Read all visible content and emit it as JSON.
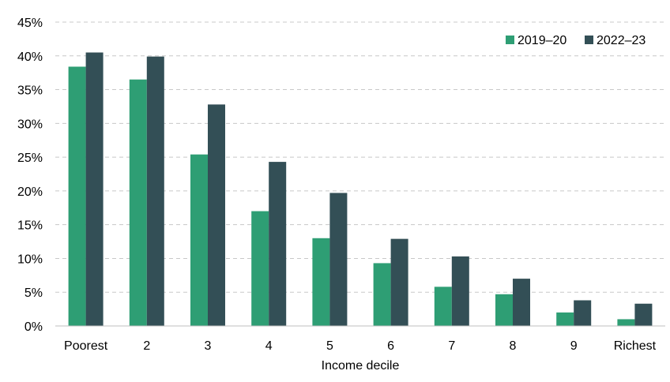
{
  "chart_data": {
    "type": "bar",
    "categories": [
      "Poorest",
      "2",
      "3",
      "4",
      "5",
      "6",
      "7",
      "8",
      "9",
      "Richest"
    ],
    "series": [
      {
        "name": "2019–20",
        "color": "#2e9e74",
        "values": [
          38.4,
          36.5,
          25.4,
          17.0,
          13.0,
          9.3,
          5.8,
          4.7,
          2.0,
          1.0
        ]
      },
      {
        "name": "2022–23",
        "color": "#334f56",
        "values": [
          40.5,
          39.9,
          32.8,
          24.3,
          19.7,
          12.9,
          10.3,
          7.0,
          3.8,
          3.3
        ]
      }
    ],
    "title": "",
    "xlabel": "Income decile",
    "ylabel": "",
    "ylim": [
      0,
      45
    ],
    "yticks": [
      "0%",
      "5%",
      "10%",
      "15%",
      "20%",
      "25%",
      "30%",
      "35%",
      "40%",
      "45%"
    ],
    "ytick_values": [
      0,
      5,
      10,
      15,
      20,
      25,
      30,
      35,
      40,
      45
    ],
    "grid": true,
    "legend_position": "top-right"
  }
}
